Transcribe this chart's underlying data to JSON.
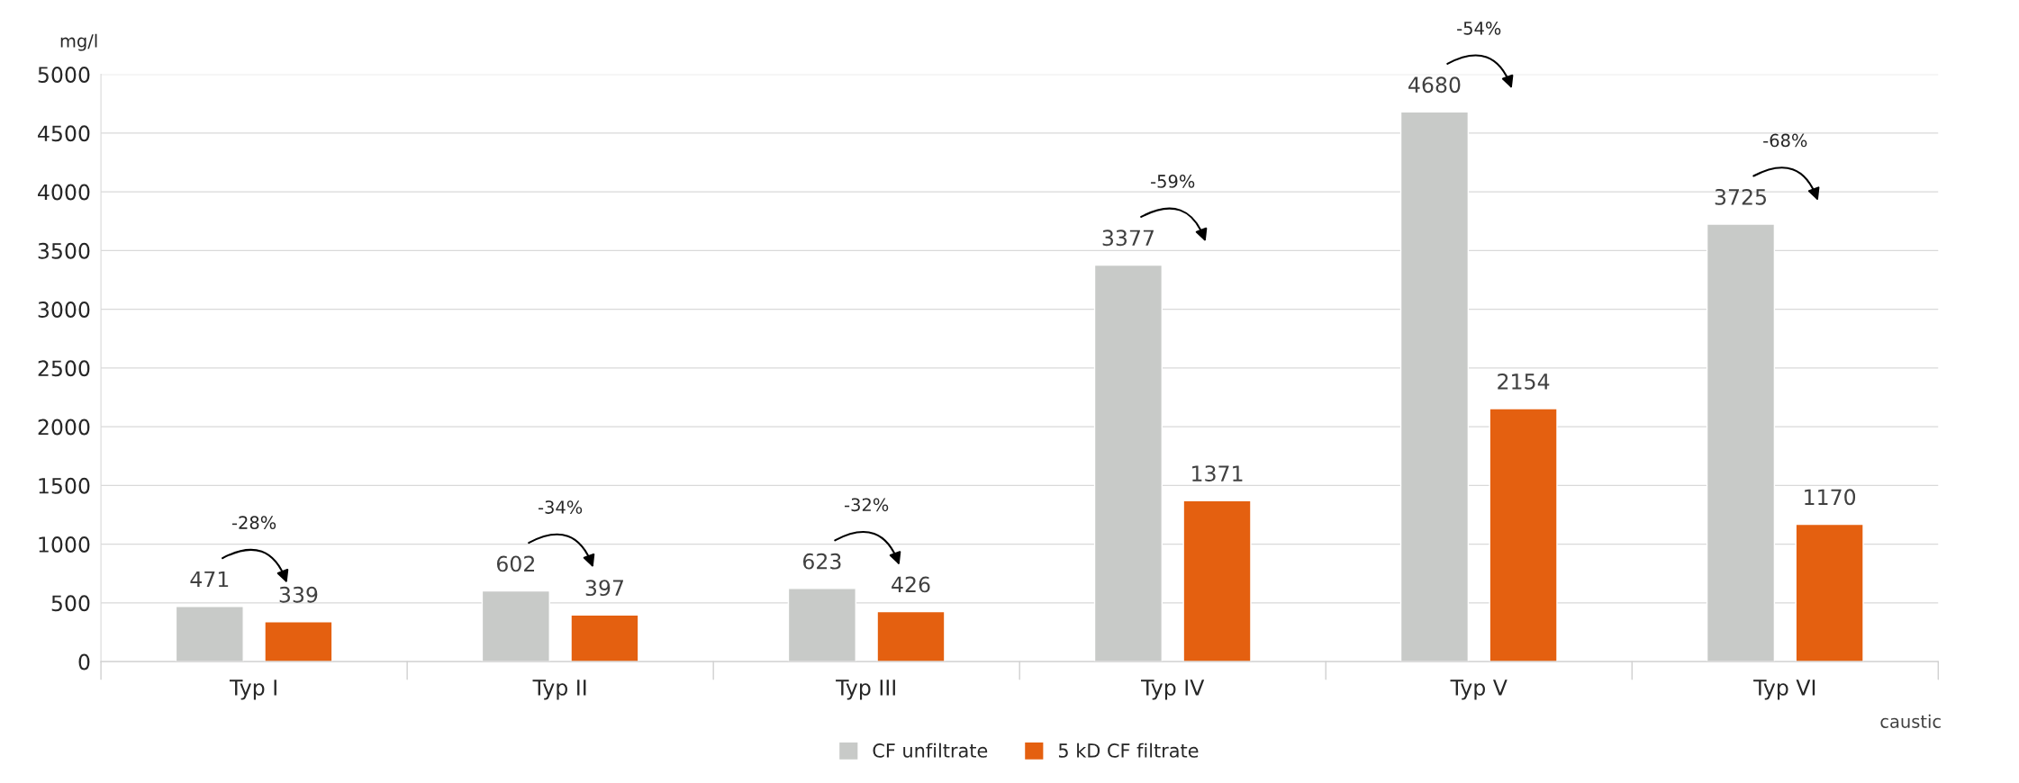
{
  "chart_data": {
    "type": "bar",
    "ylabel": "mg/l",
    "xlabel": "caustic",
    "categories": [
      "Typ I",
      "Typ II",
      "Typ III",
      "Typ IV",
      "Typ V",
      "Typ VI"
    ],
    "series": [
      {
        "name": "CF unfiltrate",
        "color": "#c8cac8",
        "values": [
          471,
          602,
          623,
          3377,
          4680,
          3725
        ]
      },
      {
        "name": "5 kD CF filtrate",
        "color": "#e46010",
        "values": [
          339,
          397,
          426,
          1371,
          2154,
          1170
        ]
      }
    ],
    "ylim": [
      0,
      5000
    ],
    "yticks": [
      0,
      500,
      1000,
      1500,
      2000,
      2500,
      3000,
      3500,
      4000,
      4500,
      5000
    ],
    "grid": "y",
    "legend": "bottom",
    "data_labels": true,
    "annotations": [
      "-28%",
      "-34%",
      "-32%",
      "-59%",
      "-54%",
      "-68%"
    ]
  }
}
